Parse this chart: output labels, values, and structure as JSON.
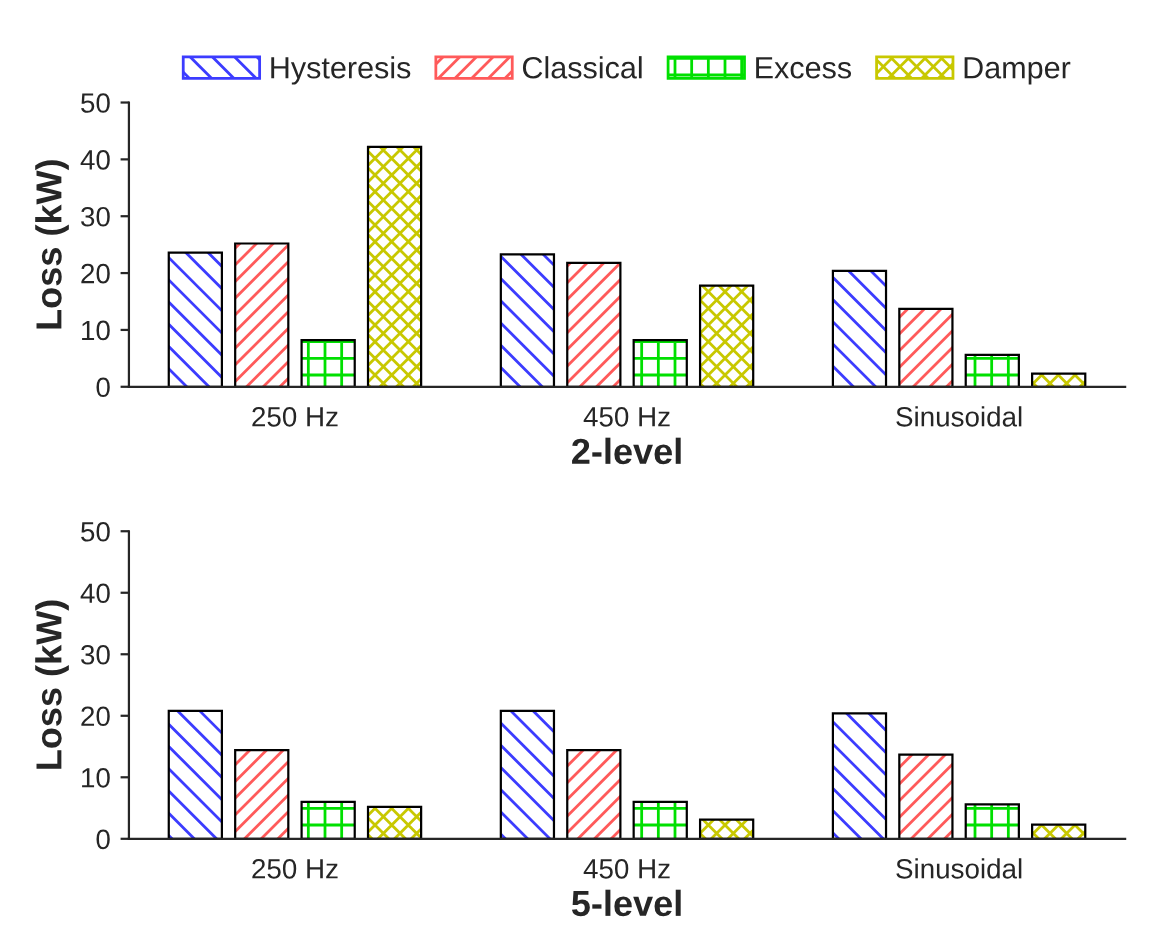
{
  "chart_data": [
    {
      "type": "bar",
      "categories": [
        "250 Hz",
        "450 Hz",
        "Sinusoidal"
      ],
      "xlabel": "2-level",
      "ylabel": "Loss (kW)",
      "ylim": [
        0,
        50
      ],
      "yticks": [
        0,
        10,
        20,
        30,
        40,
        50
      ],
      "legend": "top",
      "grid": false,
      "series": [
        {
          "name": "Hysteresis",
          "color": "#3c3cff",
          "values": [
            23.6,
            23.3,
            20.4
          ]
        },
        {
          "name": "Classical",
          "color": "#ff5a5a",
          "values": [
            25.2,
            21.8,
            13.7
          ]
        },
        {
          "name": "Excess",
          "color": "#00e000",
          "values": [
            8.2,
            8.2,
            5.6
          ]
        },
        {
          "name": "Damper",
          "color": "#c8c800",
          "values": [
            42.2,
            17.8,
            2.3
          ]
        }
      ]
    },
    {
      "type": "bar",
      "categories": [
        "250 Hz",
        "450 Hz",
        "Sinusoidal"
      ],
      "xlabel": "5-level",
      "ylabel": "Loss (kW)",
      "ylim": [
        0,
        50
      ],
      "yticks": [
        0,
        10,
        20,
        30,
        40,
        50
      ],
      "grid": false,
      "series": [
        {
          "color": "#3c3cff",
          "values": [
            20.8,
            20.8,
            20.4
          ]
        },
        {
          "color": "#ff5a5a",
          "values": [
            14.4,
            14.4,
            13.7
          ]
        },
        {
          "color": "#00e000",
          "values": [
            6.0,
            6.0,
            5.6
          ]
        },
        {
          "color": "#c8c800",
          "values": [
            5.2,
            3.1,
            2.3
          ]
        }
      ]
    }
  ]
}
